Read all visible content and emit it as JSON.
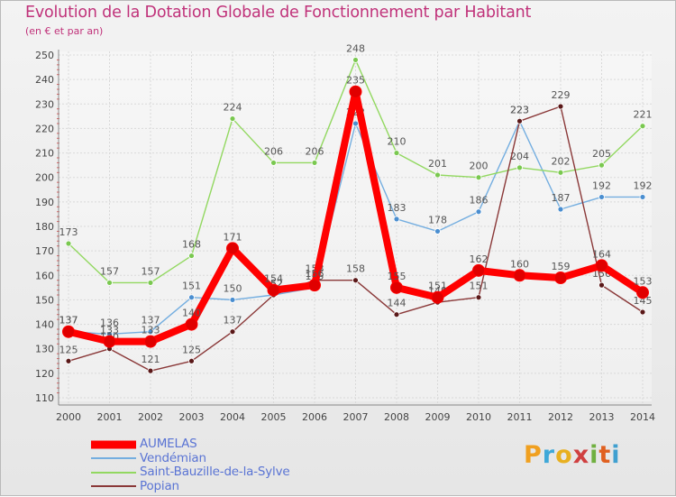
{
  "header": {
    "title": "Evolution de la Dotation Globale de Fonctionnement par Habitant",
    "subtitle": "(en € et par an)"
  },
  "brand": {
    "name": "Proxiti",
    "letters": [
      "P",
      "r",
      "o",
      "x",
      "i",
      "t",
      "i"
    ],
    "letter_colors": [
      "#f0a020",
      "#3fa8d8",
      "#e8b020",
      "#d04040",
      "#70b040",
      "#e06020",
      "#40a0d0"
    ]
  },
  "colors": {
    "title": "#c0327a",
    "legend_text": "#5a74d4",
    "grid": "#d9d9d9",
    "axis_text": "#444444",
    "label_text": "#555555"
  },
  "chart_data": {
    "type": "line",
    "title": "Evolution de la Dotation Globale de Fonctionnement par Habitant",
    "subtitle": "(en € et par an)",
    "xlabel": "",
    "ylabel": "",
    "x": [
      "2000",
      "2001",
      "2002",
      "2003",
      "2004",
      "2005",
      "2006",
      "2007",
      "2008",
      "2009",
      "2010",
      "2011",
      "2012",
      "2013",
      "2014"
    ],
    "ylim": [
      110,
      250
    ],
    "yticks": [
      110,
      120,
      130,
      140,
      150,
      160,
      170,
      180,
      190,
      200,
      210,
      220,
      230,
      240,
      250
    ],
    "grid": true,
    "legend_position": "bottom-left",
    "series": [
      {
        "name": "AUMELAS",
        "color": "#ff0000",
        "marker": "#e00000",
        "emphasis": true,
        "values": [
          137,
          133,
          133,
          140,
          171,
          154,
          156,
          235,
          155,
          151,
          162,
          160,
          159,
          164,
          153
        ],
        "labels": [
          "137",
          "133",
          "133",
          "140",
          "171",
          "154",
          "156",
          "235",
          "155",
          "151",
          "162",
          "160",
          "159",
          "164",
          "153"
        ]
      },
      {
        "name": "Vendémian",
        "color": "#74aee0",
        "marker": "#4a8ed0",
        "emphasis": false,
        "values": [
          137,
          136,
          137,
          151,
          150,
          152,
          155,
          222,
          183,
          178,
          186,
          223,
          187,
          192,
          192
        ],
        "labels": [
          "137",
          "136",
          "137",
          "151",
          "150",
          "152",
          "155",
          "222",
          "183",
          "178",
          "186",
          "223",
          "187",
          "192",
          "192"
        ]
      },
      {
        "name": "Saint-Bauzille-de-la-Sylve",
        "color": "#92d860",
        "marker": "#7ac850",
        "emphasis": false,
        "values": [
          173,
          157,
          157,
          168,
          224,
          206,
          206,
          248,
          210,
          201,
          200,
          204,
          202,
          205,
          221
        ],
        "labels": [
          "173",
          "157",
          "157",
          "168",
          "224",
          "206",
          "206",
          "248",
          "210",
          "201",
          "200",
          "204",
          "202",
          "205",
          "221"
        ]
      },
      {
        "name": "Popian",
        "color": "#8a3838",
        "marker": "#5a1818",
        "emphasis": false,
        "values": [
          125,
          130,
          121,
          125,
          137,
          152,
          158,
          158,
          144,
          149,
          151,
          223,
          229,
          156,
          145
        ],
        "labels": [
          "125",
          "130",
          "121",
          "125",
          "137",
          "152",
          "158",
          "158",
          "144",
          "149",
          "151",
          "223",
          "229",
          "156",
          "145"
        ]
      }
    ]
  }
}
